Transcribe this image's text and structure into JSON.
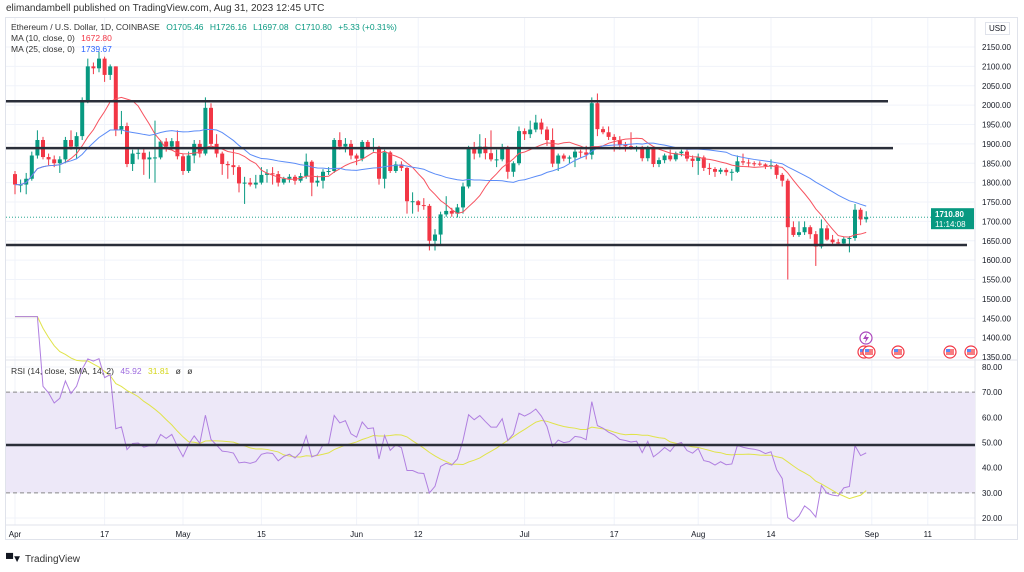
{
  "header": {
    "publisher": "elimandambell published on TradingView.com, Aug 31, 2023 12:45 UTC"
  },
  "legend": {
    "symbol": "Ethereum / U.S. Dollar, 1D, COINBASE",
    "open": "O1705.46",
    "high": "H1726.16",
    "low": "L1697.08",
    "close": "C1710.80",
    "change": "+5.33 (+0.31%)",
    "ma10_label": "MA (10, close, 0)",
    "ma10_value": "1672.80",
    "ma25_label": "MA (25, close, 0)",
    "ma25_value": "1739.67",
    "rsi_label": "RSI (14, close, SMA, 14, 2)",
    "rsi_value": "45.92",
    "rsi_sma_value": "31.81",
    "rsi_extra1": "ø",
    "rsi_extra2": "ø"
  },
  "price_axis": {
    "currency": "USD",
    "last_price": "1710.80",
    "countdown": "11:14:08"
  },
  "footer": {
    "brand": "TradingView"
  },
  "colors": {
    "up": "#089981",
    "down": "#f23645",
    "ma10": "#f7525f",
    "ma25": "#5b8cf7",
    "rsi": "#b07fe0",
    "rsi_sma": "#e0e34a",
    "rsi_band": "#ede8f8",
    "level_line": "#2a2e39"
  },
  "chart_data": [
    {
      "type": "candlestick",
      "title": "Ethereum / U.S. Dollar, 1D, COINBASE",
      "x_start": "2023-04-01",
      "x_end": "2023-08-31",
      "xticks": [
        "Apr",
        "17",
        "May",
        "15",
        "Jun",
        "12",
        "Jul",
        "17",
        "Aug",
        "14",
        "Sep",
        "11"
      ],
      "yticks": [
        "2150.00",
        "2100.00",
        "2050.00",
        "2000.00",
        "1950.00",
        "1900.00",
        "1850.00",
        "1800.00",
        "1750.00",
        "1700.00",
        "1650.00",
        "1600.00",
        "1550.00",
        "1500.00",
        "1450.00",
        "1400.00",
        "1350.00"
      ],
      "ylim": [
        1350,
        2150
      ],
      "grid": true,
      "horizontal_levels": [
        2010,
        1889,
        1639
      ],
      "moving_averages": [
        {
          "name": "MA (10, close, 0)",
          "period": 10
        },
        {
          "name": "MA (25, close, 0)",
          "period": 25
        }
      ],
      "ohlc": [
        [
          1822,
          1830,
          1770,
          1795
        ],
        [
          1795,
          1808,
          1775,
          1795
        ],
        [
          1795,
          1825,
          1770,
          1810
        ],
        [
          1810,
          1880,
          1805,
          1870
        ],
        [
          1870,
          1935,
          1862,
          1910
        ],
        [
          1910,
          1918,
          1860,
          1866
        ],
        [
          1866,
          1875,
          1845,
          1860
        ],
        [
          1860,
          1870,
          1840,
          1850
        ],
        [
          1850,
          1868,
          1825,
          1860
        ],
        [
          1860,
          1918,
          1850,
          1910
        ],
        [
          1910,
          1935,
          1885,
          1893
        ],
        [
          1893,
          1930,
          1862,
          1920
        ],
        [
          1920,
          2020,
          1910,
          2010
        ],
        [
          2010,
          2120,
          2005,
          2100
        ],
        [
          2100,
          2110,
          2080,
          2095
        ],
        [
          2095,
          2138,
          2085,
          2120
        ],
        [
          2120,
          2125,
          2060,
          2078
        ],
        [
          2078,
          2105,
          2065,
          2100
        ],
        [
          2100,
          2100,
          1920,
          1937
        ],
        [
          1937,
          1985,
          1925,
          1946
        ],
        [
          1946,
          1955,
          1840,
          1848
        ],
        [
          1848,
          1885,
          1830,
          1875
        ],
        [
          1875,
          1890,
          1860,
          1877
        ],
        [
          1877,
          1890,
          1820,
          1860
        ],
        [
          1860,
          1880,
          1810,
          1865
        ],
        [
          1865,
          1960,
          1800,
          1865
        ],
        [
          1865,
          1910,
          1860,
          1906
        ],
        [
          1906,
          1915,
          1880,
          1893
        ],
        [
          1893,
          1915,
          1885,
          1907
        ],
        [
          1907,
          1935,
          1860,
          1868
        ],
        [
          1868,
          1875,
          1820,
          1830
        ],
        [
          1830,
          1880,
          1825,
          1870
        ],
        [
          1870,
          1910,
          1850,
          1900
        ],
        [
          1900,
          1910,
          1865,
          1875
        ],
        [
          1875,
          2020,
          1870,
          1993
        ],
        [
          1993,
          2005,
          1895,
          1900
        ],
        [
          1900,
          1925,
          1865,
          1875
        ],
        [
          1875,
          1880,
          1820,
          1848
        ],
        [
          1848,
          1855,
          1810,
          1845
        ],
        [
          1845,
          1890,
          1820,
          1840
        ],
        [
          1840,
          1845,
          1775,
          1798
        ],
        [
          1798,
          1815,
          1745,
          1800
        ],
        [
          1800,
          1812,
          1790,
          1795
        ],
        [
          1795,
          1820,
          1785,
          1800
        ],
        [
          1800,
          1840,
          1795,
          1820
        ],
        [
          1820,
          1835,
          1800,
          1824
        ],
        [
          1824,
          1840,
          1795,
          1822
        ],
        [
          1822,
          1830,
          1790,
          1800
        ],
        [
          1800,
          1815,
          1795,
          1810
        ],
        [
          1810,
          1822,
          1800,
          1815
        ],
        [
          1815,
          1820,
          1795,
          1805
        ],
        [
          1805,
          1825,
          1800,
          1817
        ],
        [
          1817,
          1875,
          1810,
          1854
        ],
        [
          1854,
          1858,
          1765,
          1800
        ],
        [
          1800,
          1818,
          1790,
          1805
        ],
        [
          1805,
          1835,
          1785,
          1828
        ],
        [
          1828,
          1840,
          1820,
          1830
        ],
        [
          1830,
          1915,
          1825,
          1910
        ],
        [
          1910,
          1930,
          1885,
          1893
        ],
        [
          1893,
          1915,
          1878,
          1900
        ],
        [
          1900,
          1910,
          1860,
          1870
        ],
        [
          1870,
          1875,
          1845,
          1862
        ],
        [
          1862,
          1910,
          1855,
          1905
        ],
        [
          1905,
          1910,
          1885,
          1890
        ],
        [
          1890,
          1915,
          1880,
          1892
        ],
        [
          1892,
          1895,
          1795,
          1810
        ],
        [
          1810,
          1885,
          1785,
          1878
        ],
        [
          1878,
          1882,
          1825,
          1830
        ],
        [
          1830,
          1855,
          1825,
          1847
        ],
        [
          1847,
          1855,
          1830,
          1838
        ],
        [
          1838,
          1840,
          1720,
          1752
        ],
        [
          1752,
          1775,
          1720,
          1752
        ],
        [
          1752,
          1755,
          1725,
          1742
        ],
        [
          1742,
          1760,
          1730,
          1740
        ],
        [
          1740,
          1745,
          1625,
          1650
        ],
        [
          1650,
          1680,
          1625,
          1666
        ],
        [
          1666,
          1725,
          1640,
          1718
        ],
        [
          1718,
          1765,
          1712,
          1727
        ],
        [
          1727,
          1735,
          1712,
          1720
        ],
        [
          1720,
          1745,
          1710,
          1736
        ],
        [
          1736,
          1800,
          1720,
          1790
        ],
        [
          1790,
          1895,
          1785,
          1890
        ],
        [
          1890,
          1905,
          1860,
          1875
        ],
        [
          1875,
          1925,
          1865,
          1893
        ],
        [
          1893,
          1915,
          1860,
          1876
        ],
        [
          1876,
          1935,
          1855,
          1860
        ],
        [
          1860,
          1885,
          1840,
          1860
        ],
        [
          1860,
          1900,
          1855,
          1890
        ],
        [
          1890,
          1895,
          1810,
          1828
        ],
        [
          1828,
          1855,
          1815,
          1850
        ],
        [
          1850,
          1945,
          1845,
          1933
        ],
        [
          1933,
          1940,
          1910,
          1925
        ],
        [
          1925,
          1960,
          1915,
          1937
        ],
        [
          1937,
          1975,
          1930,
          1955
        ],
        [
          1955,
          1965,
          1925,
          1937
        ],
        [
          1937,
          1945,
          1895,
          1910
        ],
        [
          1910,
          1940,
          1840,
          1849
        ],
        [
          1849,
          1875,
          1830,
          1870
        ],
        [
          1870,
          1875,
          1855,
          1862
        ],
        [
          1862,
          1870,
          1850,
          1865
        ],
        [
          1865,
          1890,
          1840,
          1880
        ],
        [
          1880,
          1885,
          1865,
          1878
        ],
        [
          1878,
          1895,
          1860,
          1872
        ],
        [
          1872,
          2020,
          1860,
          2005
        ],
        [
          2005,
          2030,
          1920,
          1938
        ],
        [
          1938,
          1945,
          1925,
          1930
        ],
        [
          1930,
          1945,
          1910,
          1918
        ],
        [
          1918,
          1925,
          1880,
          1910
        ],
        [
          1910,
          1920,
          1885,
          1897
        ],
        [
          1897,
          1905,
          1880,
          1894
        ],
        [
          1894,
          1930,
          1885,
          1890
        ],
        [
          1890,
          1895,
          1880,
          1892
        ],
        [
          1892,
          1895,
          1855,
          1863
        ],
        [
          1863,
          1895,
          1855,
          1890
        ],
        [
          1890,
          1892,
          1840,
          1848
        ],
        [
          1848,
          1865,
          1840,
          1858
        ],
        [
          1858,
          1875,
          1850,
          1870
        ],
        [
          1870,
          1885,
          1855,
          1860
        ],
        [
          1860,
          1880,
          1855,
          1876
        ],
        [
          1876,
          1885,
          1868,
          1880
        ],
        [
          1880,
          1885,
          1855,
          1862
        ],
        [
          1862,
          1870,
          1840,
          1856
        ],
        [
          1856,
          1875,
          1820,
          1865
        ],
        [
          1865,
          1870,
          1830,
          1838
        ],
        [
          1838,
          1850,
          1820,
          1835
        ],
        [
          1835,
          1840,
          1815,
          1828
        ],
        [
          1828,
          1838,
          1822,
          1833
        ],
        [
          1833,
          1838,
          1818,
          1827
        ],
        [
          1827,
          1835,
          1805,
          1828
        ],
        [
          1828,
          1870,
          1825,
          1855
        ],
        [
          1855,
          1875,
          1845,
          1852
        ],
        [
          1852,
          1860,
          1840,
          1850
        ],
        [
          1850,
          1855,
          1842,
          1849
        ],
        [
          1849,
          1855,
          1843,
          1847
        ],
        [
          1847,
          1850,
          1835,
          1843
        ],
        [
          1843,
          1860,
          1835,
          1845
        ],
        [
          1845,
          1848,
          1810,
          1820
        ],
        [
          1820,
          1825,
          1790,
          1805
        ],
        [
          1805,
          1810,
          1550,
          1685
        ],
        [
          1685,
          1700,
          1660,
          1665
        ],
        [
          1665,
          1700,
          1660,
          1672
        ],
        [
          1672,
          1700,
          1665,
          1685
        ],
        [
          1685,
          1690,
          1655,
          1667
        ],
        [
          1667,
          1675,
          1585,
          1635
        ],
        [
          1635,
          1705,
          1630,
          1682
        ],
        [
          1682,
          1690,
          1650,
          1653
        ],
        [
          1653,
          1665,
          1640,
          1646
        ],
        [
          1646,
          1655,
          1640,
          1643
        ],
        [
          1643,
          1660,
          1640,
          1655
        ],
        [
          1655,
          1662,
          1620,
          1657
        ],
        [
          1657,
          1745,
          1650,
          1730
        ],
        [
          1730,
          1735,
          1690,
          1705
        ],
        [
          1705.46,
          1726.16,
          1697.08,
          1710.8
        ]
      ]
    },
    {
      "type": "line",
      "title": "RSI (14, close, SMA, 14, 2)",
      "yticks": [
        "80.00",
        "70.00",
        "60.00",
        "50.00",
        "40.00",
        "30.00",
        "20.00"
      ],
      "ylim": [
        17,
        82
      ],
      "band": [
        30,
        70
      ],
      "horizontal_levels": [
        49
      ],
      "series": [
        {
          "name": "RSI",
          "period": 14
        },
        {
          "name": "SMA",
          "period": 14
        }
      ]
    }
  ]
}
